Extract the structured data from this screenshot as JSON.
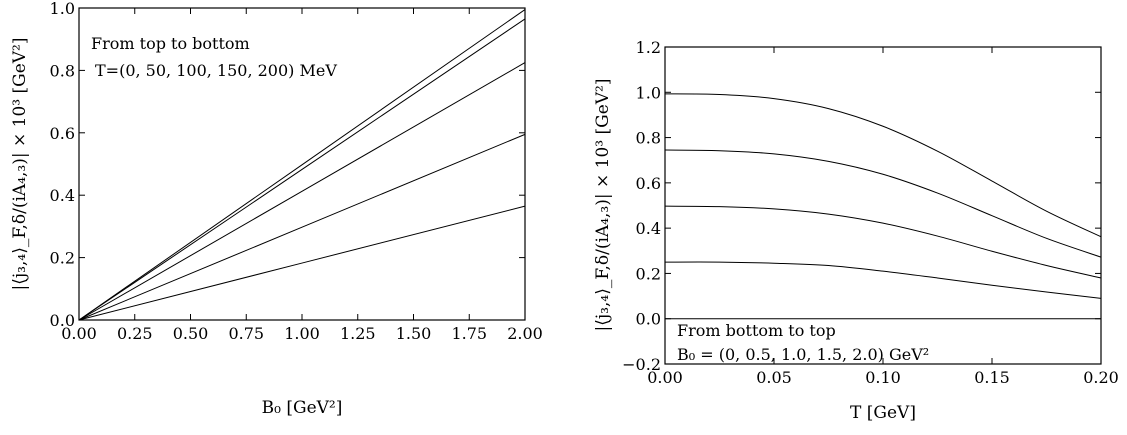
{
  "chart_data": [
    {
      "type": "line",
      "xlabel": "B₀ [GeV²]",
      "ylabel": "|⟨j₃,₄⟩_F,δ/(iA₄,₃)| × 10³ [GeV²]",
      "xlim": [
        0,
        2.0
      ],
      "ylim": [
        0,
        1.0
      ],
      "xticks": [
        "0.00",
        "0.25",
        "0.50",
        "0.75",
        "1.00",
        "1.25",
        "1.50",
        "1.75",
        "2.00"
      ],
      "yticks": [
        "0.0",
        "0.2",
        "0.4",
        "0.6",
        "0.8",
        "1.0"
      ],
      "annotation": [
        "From top to bottom",
        "T=(0, 50, 100, 150, 200) MeV"
      ],
      "grid": false,
      "series": [
        {
          "x": [
            0,
            2.0
          ],
          "y": [
            0,
            0.995
          ]
        },
        {
          "x": [
            0,
            2.0
          ],
          "y": [
            0,
            0.965
          ]
        },
        {
          "x": [
            0,
            2.0
          ],
          "y": [
            0,
            0.825
          ]
        },
        {
          "x": [
            0,
            2.0
          ],
          "y": [
            0,
            0.595
          ]
        },
        {
          "x": [
            0,
            2.0
          ],
          "y": [
            0,
            0.365
          ]
        }
      ]
    },
    {
      "type": "line",
      "xlabel": "T [GeV]",
      "ylabel": "|⟨j₃,₄⟩_F,δ/(iA₄,₃)| × 10³ [GeV²]",
      "xlim": [
        0,
        0.2
      ],
      "ylim": [
        -0.2,
        1.2
      ],
      "xticks": [
        "0.00",
        "0.05",
        "0.10",
        "0.15",
        "0.20"
      ],
      "yticks": [
        "−0.2",
        "0.0",
        "0.2",
        "0.4",
        "0.6",
        "0.8",
        "1.0",
        "1.2"
      ],
      "annotation": [
        "From bottom to top",
        "B₀ = (0, 0.5, 1.0, 1.5, 2.0) GeV²"
      ],
      "grid": false,
      "series": [
        {
          "x": [
            0,
            0.025,
            0.05,
            0.075,
            0.1,
            0.125,
            0.15,
            0.175,
            0.2
          ],
          "y": [
            0,
            0,
            0,
            0,
            0,
            0,
            0,
            0,
            0
          ]
        },
        {
          "x": [
            0,
            0.025,
            0.05,
            0.075,
            0.1,
            0.125,
            0.15,
            0.175,
            0.2
          ],
          "y": [
            0.25,
            0.25,
            0.245,
            0.235,
            0.21,
            0.18,
            0.148,
            0.118,
            0.09
          ]
        },
        {
          "x": [
            0,
            0.025,
            0.05,
            0.075,
            0.1,
            0.125,
            0.15,
            0.175,
            0.2
          ],
          "y": [
            0.497,
            0.495,
            0.485,
            0.462,
            0.422,
            0.365,
            0.298,
            0.235,
            0.18
          ]
        },
        {
          "x": [
            0,
            0.025,
            0.05,
            0.075,
            0.1,
            0.125,
            0.15,
            0.175,
            0.2
          ],
          "y": [
            0.745,
            0.742,
            0.728,
            0.695,
            0.638,
            0.555,
            0.455,
            0.355,
            0.272
          ]
        },
        {
          "x": [
            0,
            0.025,
            0.05,
            0.075,
            0.1,
            0.125,
            0.15,
            0.175,
            0.2
          ],
          "y": [
            0.993,
            0.99,
            0.972,
            0.928,
            0.85,
            0.74,
            0.608,
            0.475,
            0.362
          ]
        }
      ]
    }
  ]
}
